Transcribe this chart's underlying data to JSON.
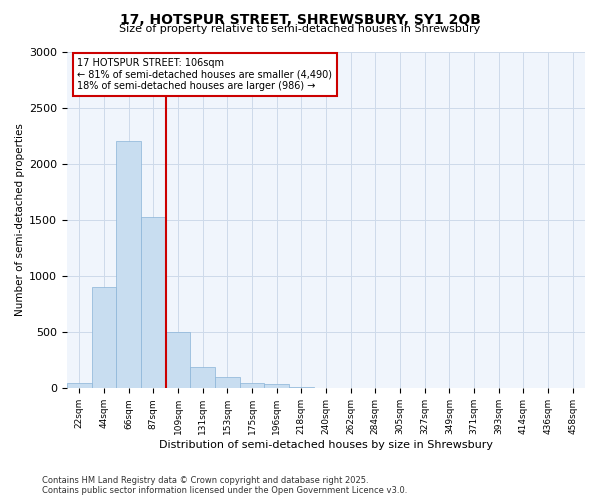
{
  "title1": "17, HOTSPUR STREET, SHREWSBURY, SY1 2QB",
  "title2": "Size of property relative to semi-detached houses in Shrewsbury",
  "xlabel": "Distribution of semi-detached houses by size in Shrewsbury",
  "ylabel": "Number of semi-detached properties",
  "bins": [
    "22sqm",
    "44sqm",
    "66sqm",
    "87sqm",
    "109sqm",
    "131sqm",
    "153sqm",
    "175sqm",
    "196sqm",
    "218sqm",
    "240sqm",
    "262sqm",
    "284sqm",
    "305sqm",
    "327sqm",
    "349sqm",
    "371sqm",
    "393sqm",
    "414sqm",
    "436sqm",
    "458sqm"
  ],
  "values": [
    50,
    900,
    2200,
    1530,
    500,
    190,
    100,
    50,
    35,
    10,
    3,
    0,
    0,
    0,
    0,
    0,
    0,
    0,
    0,
    0,
    0
  ],
  "vline_position": 3.5,
  "annotation_title": "17 HOTSPUR STREET: 106sqm",
  "annotation_line1": "← 81% of semi-detached houses are smaller (4,490)",
  "annotation_line2": "18% of semi-detached houses are larger (986) →",
  "bar_color": "#c8ddf0",
  "bar_edge_color": "#8ab4d8",
  "vline_color": "#cc0000",
  "annotation_box_edge_color": "#cc0000",
  "grid_color": "#cddaea",
  "background_color": "#ffffff",
  "plot_bg_color": "#f0f5fc",
  "ylim": [
    0,
    3000
  ],
  "yticks": [
    0,
    500,
    1000,
    1500,
    2000,
    2500,
    3000
  ],
  "footer1": "Contains HM Land Registry data © Crown copyright and database right 2025.",
  "footer2": "Contains public sector information licensed under the Open Government Licence v3.0."
}
